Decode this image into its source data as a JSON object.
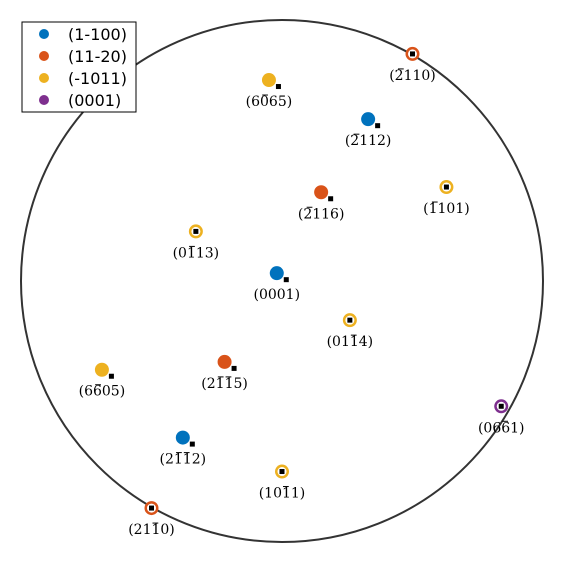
{
  "chart_data": {
    "type": "scatter",
    "title": "",
    "legend": {
      "placement": "top-left",
      "entries": [
        {
          "label": "(1-100)",
          "color": "#0072BD"
        },
        {
          "label": "(11-20)",
          "color": "#D95319"
        },
        {
          "label": "(-1011)",
          "color": "#EDB120"
        },
        {
          "label": "(0001)",
          "color": "#7E2F8E"
        }
      ]
    },
    "projection_circle": {
      "stroke": "#333333"
    },
    "poles": [
      {
        "family": "(1-100)",
        "label": "(0001)",
        "overbar": "",
        "x": -0.02,
        "y": 0.03,
        "outline": false
      },
      {
        "family": "(1-100)",
        "label": "(2112)",
        "overbar": "0",
        "x": 0.33,
        "y": 0.62,
        "outline": false
      },
      {
        "family": "(1-100)",
        "label": "(2112)",
        "overbar": "12",
        "x": -0.38,
        "y": -0.6,
        "outline": false
      },
      {
        "family": "(11-20)",
        "label": "(2110)",
        "overbar": "0",
        "x": 0.5,
        "y": 0.87,
        "outline": true
      },
      {
        "family": "(11-20)",
        "label": "(2116)",
        "overbar": "0",
        "x": 0.15,
        "y": 0.34,
        "outline": false
      },
      {
        "family": "(11-20)",
        "label": "(2115)",
        "overbar": "12",
        "x": -0.22,
        "y": -0.31,
        "outline": false
      },
      {
        "family": "(11-20)",
        "label": "(2110)",
        "overbar": "2",
        "x": -0.5,
        "y": -0.87,
        "outline": true
      },
      {
        "family": "(-1011)",
        "label": "(6065)",
        "overbar": "1",
        "x": -0.05,
        "y": 0.77,
        "outline": false
      },
      {
        "family": "(-1011)",
        "label": "(1101)",
        "overbar": "0",
        "x": 0.63,
        "y": 0.36,
        "outline": true
      },
      {
        "family": "(-1011)",
        "label": "(0113)",
        "overbar": "1",
        "x": -0.33,
        "y": 0.19,
        "outline": true
      },
      {
        "family": "(-1011)",
        "label": "(0114)",
        "overbar": "2",
        "x": 0.26,
        "y": -0.15,
        "outline": true
      },
      {
        "family": "(-1011)",
        "label": "(6605)",
        "overbar": "1",
        "x": -0.69,
        "y": -0.34,
        "outline": false
      },
      {
        "family": "(-1011)",
        "label": "(1011)",
        "overbar": "2",
        "x": 0.0,
        "y": -0.73,
        "outline": true
      },
      {
        "family": "(0001)",
        "label": "(0661)",
        "overbar": "2",
        "x": 0.84,
        "y": -0.48,
        "outline": true
      }
    ]
  }
}
